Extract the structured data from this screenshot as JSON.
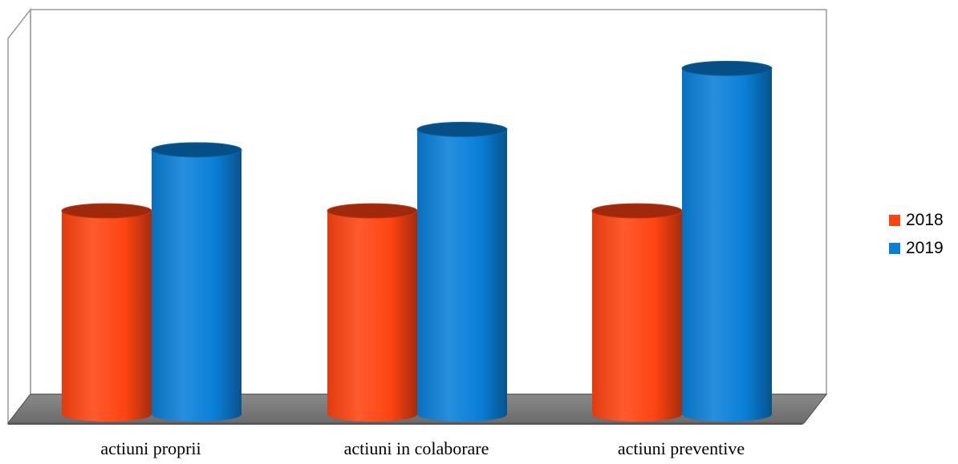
{
  "chart_data": {
    "type": "bar",
    "style": "3d-cylinder",
    "categories": [
      "actiuni proprii",
      "actiuni in colaborare",
      "actiuni preventive"
    ],
    "series": [
      {
        "name": "2018",
        "values": [
          5.0,
          5.0,
          5.0
        ],
        "color": "#ff4412"
      },
      {
        "name": "2019",
        "values": [
          6.5,
          7.0,
          8.5
        ],
        "color": "#0a7fd8"
      }
    ],
    "ylim": [
      0,
      9
    ],
    "grid": true,
    "tick_labels_shown": false,
    "legend": "right"
  }
}
